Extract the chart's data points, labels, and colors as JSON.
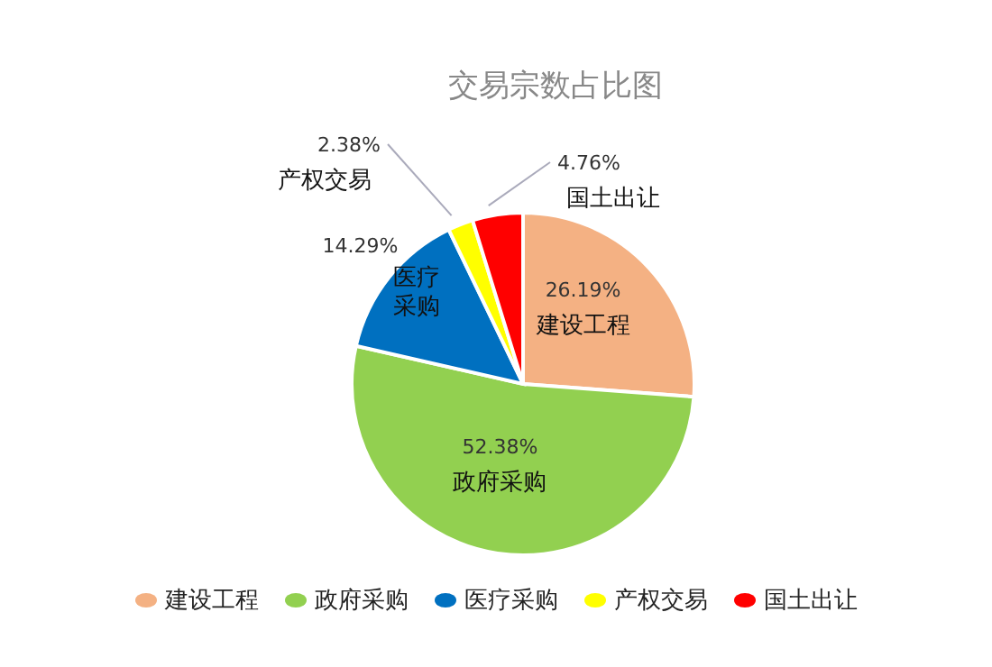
{
  "chart_data": {
    "type": "pie",
    "title": "交易宗数占比图",
    "categories": [
      "建设工程",
      "政府采购",
      "医疗采购",
      "产权交易",
      "国土出让"
    ],
    "values": [
      26.19,
      52.38,
      14.29,
      2.38,
      4.76
    ],
    "value_labels": [
      "26.19%",
      "52.38%",
      "14.29%",
      "2.38%",
      "4.76%"
    ],
    "colors": [
      "#f4b183",
      "#92d050",
      "#0070c0",
      "#ffff00",
      "#ff0000"
    ],
    "legend": "bottom"
  }
}
